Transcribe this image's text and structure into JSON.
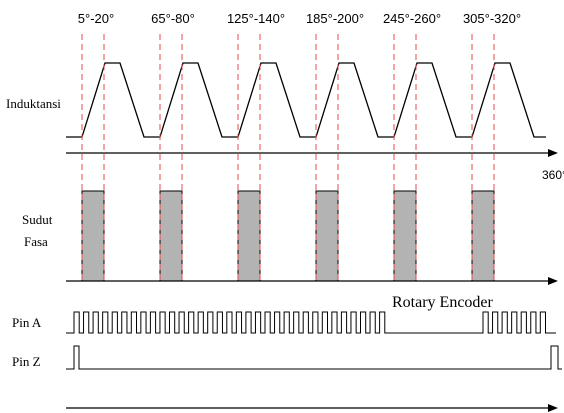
{
  "angle_labels": [
    "5°-20°",
    "65°-80°",
    "125°-140°",
    "185°-200°",
    "245°-260°",
    "305°-320°"
  ],
  "axis_end_label": "360°",
  "signals": {
    "inductance": "Induktansi",
    "phase_angle_line1": "Sudut",
    "phase_angle_line2": "Fasa",
    "pin_a": "Pin A",
    "pin_z": "Pin Z"
  },
  "encoder_label": "Rotary Encoder",
  "colors": {
    "guide_line": "#e8474f",
    "phase_fill": "#b3b3b3",
    "stroke": "#000000"
  }
}
